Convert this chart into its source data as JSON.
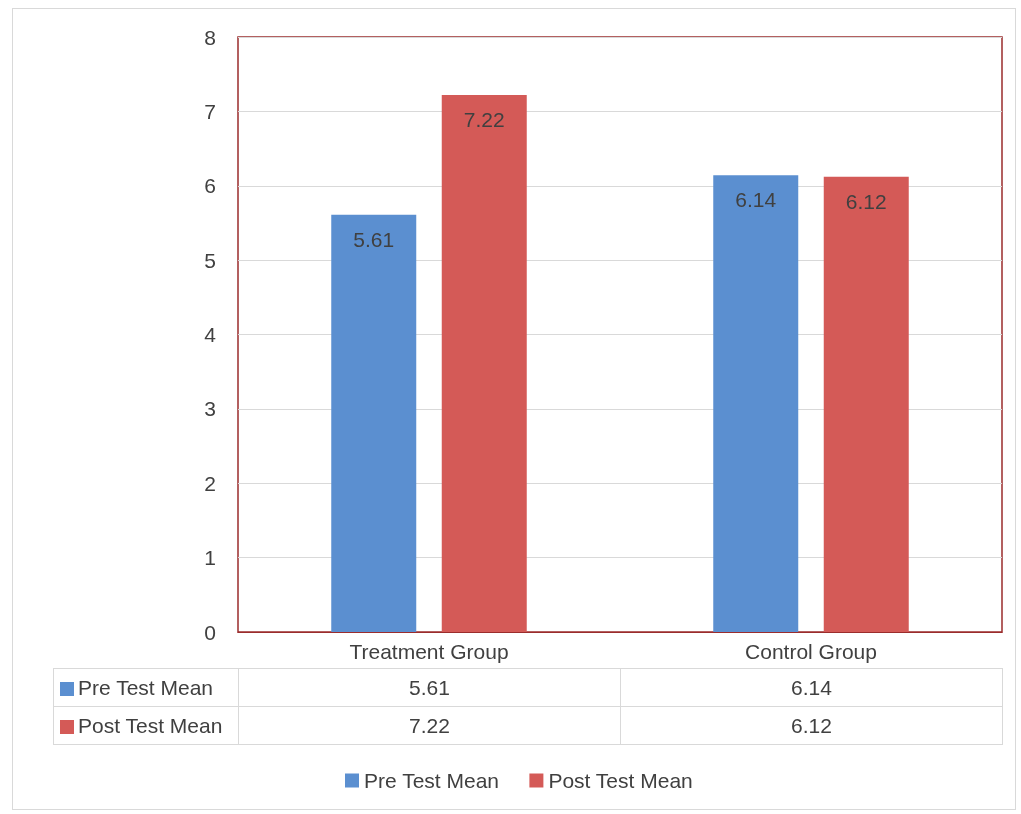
{
  "chart_data": {
    "type": "bar",
    "categories": [
      "Treatment Group",
      "Control Group"
    ],
    "series": [
      {
        "name": "Pre Test Mean",
        "color": "#5b8fd0",
        "values": [
          5.61,
          6.14
        ],
        "value_labels": [
          "5.61",
          "6.14"
        ]
      },
      {
        "name": "Post Test Mean",
        "color": "#d45a57",
        "values": [
          7.22,
          6.12
        ],
        "value_labels": [
          "7.22",
          "6.12"
        ]
      }
    ],
    "annotations": [
      "5.61",
      "6.14",
      "7.22",
      "6.12"
    ],
    "ylim": [
      0,
      8
    ],
    "yticks": [
      0,
      1,
      2,
      3,
      4,
      5,
      6,
      7,
      8
    ],
    "grid": "y",
    "data_labels": true,
    "legend": "bottom"
  }
}
